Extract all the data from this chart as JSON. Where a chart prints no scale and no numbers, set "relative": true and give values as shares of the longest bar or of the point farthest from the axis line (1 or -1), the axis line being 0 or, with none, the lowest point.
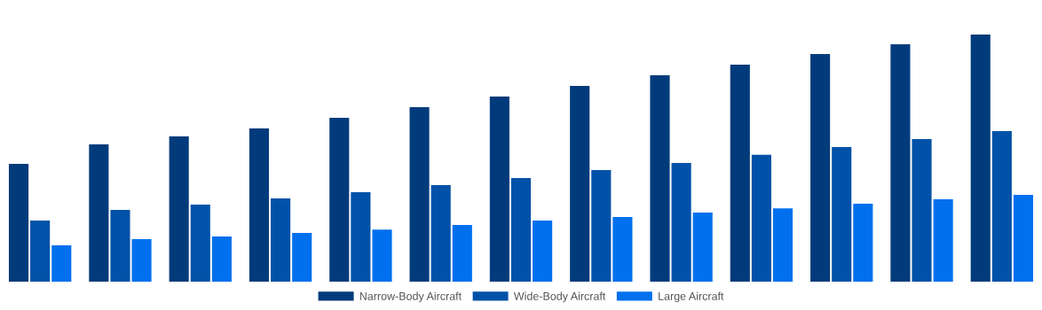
{
  "chart_data": {
    "type": "bar",
    "relative": true,
    "categories": [
      null,
      null,
      null,
      null,
      null,
      null,
      null,
      null,
      null,
      null,
      null,
      null,
      null
    ],
    "series": [
      {
        "name": "Narrow-Body Aircraft",
        "color": "#023b7b",
        "values": [
          0.477,
          0.556,
          0.588,
          0.62,
          0.663,
          0.706,
          0.749,
          0.792,
          0.835,
          0.878,
          0.921,
          0.961,
          1
        ]
      },
      {
        "name": "Wide-Body Aircraft",
        "color": "#0052a8",
        "values": [
          0.247,
          0.29,
          0.312,
          0.337,
          0.362,
          0.391,
          0.419,
          0.452,
          0.48,
          0.513,
          0.545,
          0.577,
          0.609
        ]
      },
      {
        "name": "Large Aircraft",
        "color": "#0070ee",
        "values": [
          0.147,
          0.172,
          0.183,
          0.197,
          0.211,
          0.229,
          0.247,
          0.262,
          0.28,
          0.297,
          0.315,
          0.333,
          0.351
        ]
      }
    ],
    "legend": "bottom",
    "grid": false
  }
}
